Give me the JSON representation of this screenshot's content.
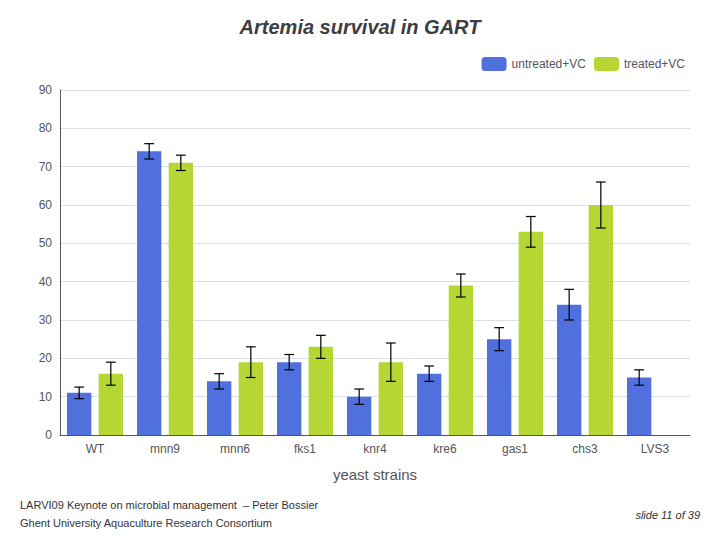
{
  "chart_data": {
    "type": "bar",
    "title": "Artemia survival in GART",
    "xlabel": "yeast strains",
    "categories": [
      "WT",
      "mnn9",
      "mnn6",
      "fks1",
      "knr4",
      "kre6",
      "gas1",
      "chs3",
      "LVS3"
    ],
    "series": [
      {
        "name": "untreated+VC",
        "values": [
          11,
          74,
          14,
          19,
          10,
          16,
          25,
          34,
          15
        ],
        "errors": [
          1.5,
          2,
          2,
          2,
          2,
          2,
          3,
          4,
          2
        ]
      },
      {
        "name": "treated+VC",
        "values": [
          16,
          71,
          19,
          23,
          19,
          39,
          53,
          60,
          null
        ],
        "errors": [
          3,
          2,
          4,
          3,
          5,
          3,
          4,
          6,
          null
        ]
      }
    ],
    "ylim": [
      0,
      90
    ],
    "yticks": [
      0,
      10,
      20,
      30,
      40,
      50,
      60,
      70,
      80,
      90
    ],
    "grid": true,
    "legend": "upper right",
    "annotations": [
      "LARVI09 Keynote on microbial management  – Peter Bossier",
      "Ghent University Aquaculture Research Consortium",
      "slide 11 of 39"
    ]
  }
}
